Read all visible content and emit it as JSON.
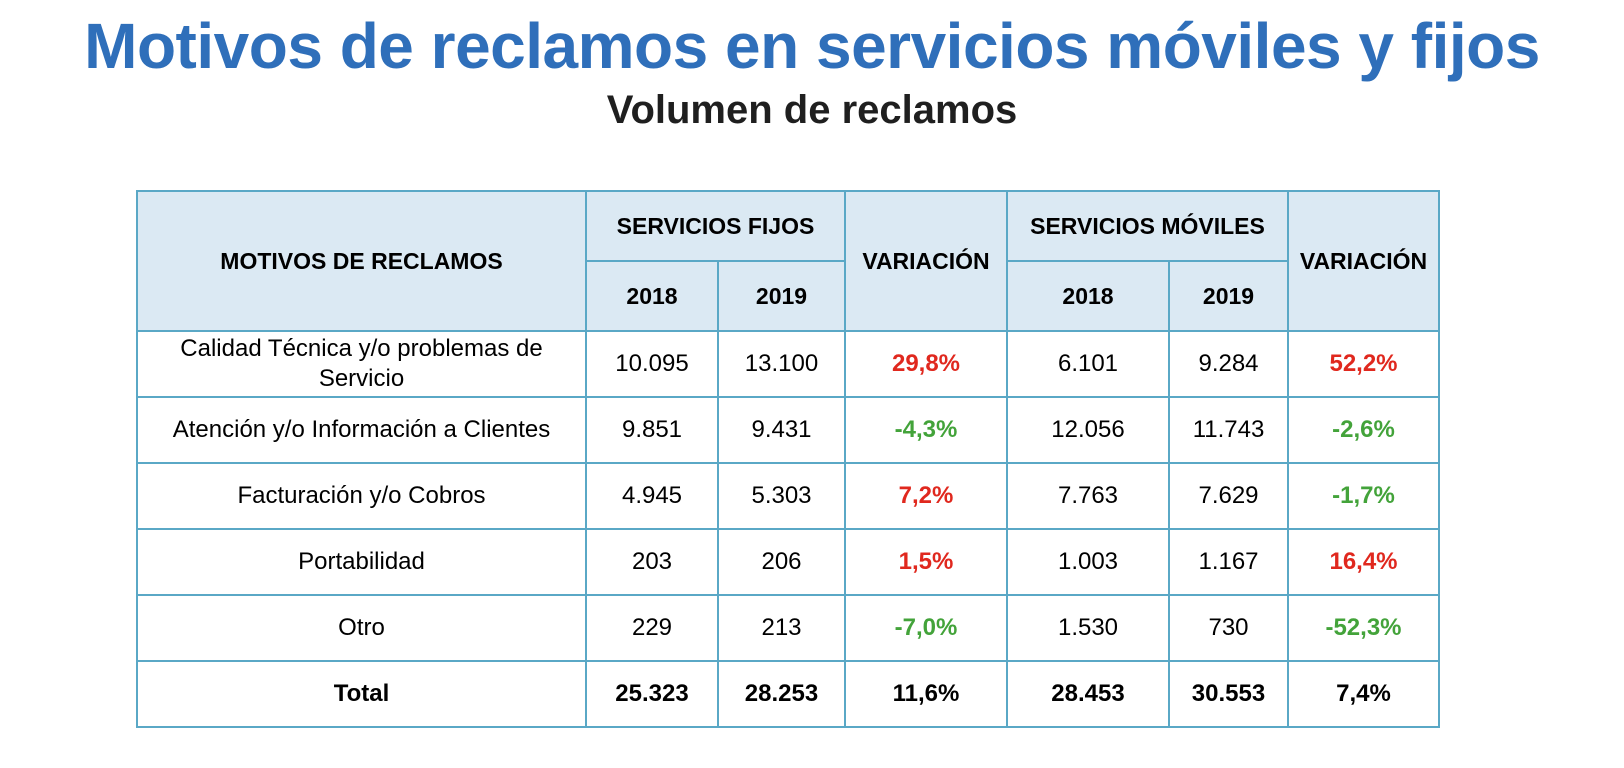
{
  "title": "Motivos de reclamos en servicios móviles y fijos",
  "subtitle": "Volumen de reclamos",
  "colors": {
    "title": "#2f6fba",
    "header_fill": "#dbe9f3",
    "border": "#5aa8c6",
    "increase": "#e0281e",
    "decrease": "#43a33a"
  },
  "table": {
    "headers": {
      "motivos": "MOTIVOS DE RECLAMOS",
      "fijos": "SERVICIOS FIJOS",
      "variacion_fijos": "VARIACIÓN",
      "moviles": "SERVICIOS MÓVILES",
      "variacion_moviles": "VARIACIÓN",
      "fijos_2018": "2018",
      "fijos_2019": "2019",
      "moviles_2018": "2018",
      "moviles_2019": "2019"
    },
    "rows": [
      {
        "motivo": "Calidad Técnica y/o problemas de Servicio",
        "fijos_2018": "10.095",
        "fijos_2019": "13.100",
        "variacion_fijos": "29,8%",
        "moviles_2018": "6.101",
        "moviles_2019": "9.284",
        "variacion_moviles": "52,2%"
      },
      {
        "motivo": "Atención y/o Información a Clientes",
        "fijos_2018": "9.851",
        "fijos_2019": "9.431",
        "variacion_fijos": "-4,3%",
        "moviles_2018": "12.056",
        "moviles_2019": "11.743",
        "variacion_moviles": "-2,6%"
      },
      {
        "motivo": "Facturación y/o Cobros",
        "fijos_2018": "4.945",
        "fijos_2019": "5.303",
        "variacion_fijos": "7,2%",
        "moviles_2018": "7.763",
        "moviles_2019": "7.629",
        "variacion_moviles": "-1,7%"
      },
      {
        "motivo": "Portabilidad",
        "fijos_2018": "203",
        "fijos_2019": "206",
        "variacion_fijos": "1,5%",
        "moviles_2018": "1.003",
        "moviles_2019": "1.167",
        "variacion_moviles": "16,4%"
      },
      {
        "motivo": "Otro",
        "fijos_2018": "229",
        "fijos_2019": "213",
        "variacion_fijos": "-7,0%",
        "moviles_2018": "1.530",
        "moviles_2019": "730",
        "variacion_moviles": "-52,3%"
      }
    ],
    "total": {
      "motivo": "Total",
      "fijos_2018": "25.323",
      "fijos_2019": "28.253",
      "variacion_fijos": "11,6%",
      "moviles_2018": "28.453",
      "moviles_2019": "30.553",
      "variacion_moviles": "7,4%"
    }
  }
}
